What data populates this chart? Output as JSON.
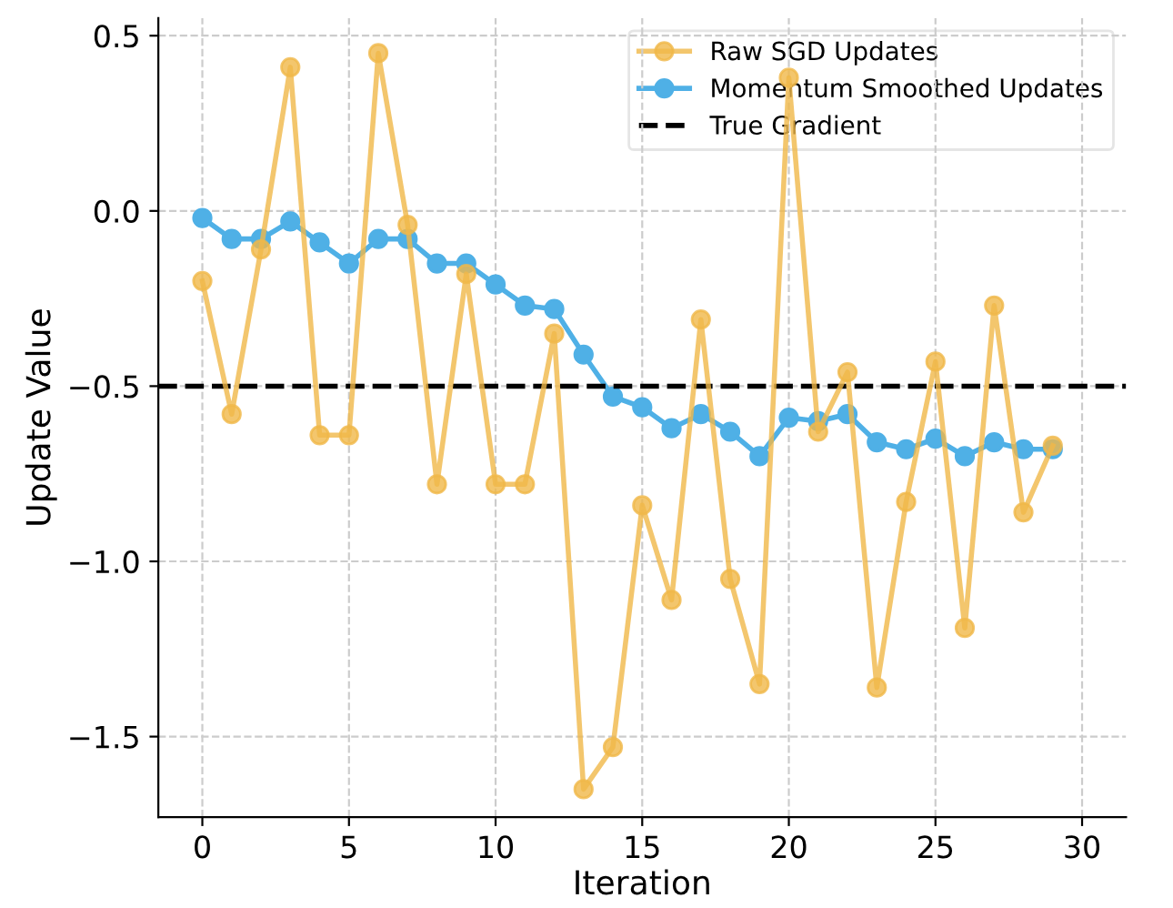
{
  "chart_data": {
    "type": "line",
    "xlabel": "Iteration",
    "ylabel": "Update Value",
    "x": [
      0,
      1,
      2,
      3,
      4,
      5,
      6,
      7,
      8,
      9,
      10,
      11,
      12,
      13,
      14,
      15,
      16,
      17,
      18,
      19,
      20,
      21,
      22,
      23,
      24,
      25,
      26,
      27,
      28,
      29
    ],
    "series": [
      {
        "name": "Raw SGD Updates",
        "color": "#f0b848",
        "values": [
          -0.2,
          -0.58,
          -0.11,
          0.41,
          -0.64,
          -0.64,
          0.45,
          -0.04,
          -0.78,
          -0.18,
          -0.78,
          -0.78,
          -0.35,
          -1.65,
          -1.53,
          -0.84,
          -1.11,
          -0.31,
          -1.05,
          -1.35,
          0.38,
          -0.63,
          -0.46,
          -1.36,
          -0.83,
          -0.43,
          -1.19,
          -0.27,
          -0.86,
          -0.67
        ]
      },
      {
        "name": "Momentum Smoothed Updates",
        "color": "#4fb0e6",
        "values": [
          -0.02,
          -0.08,
          -0.08,
          -0.03,
          -0.09,
          -0.15,
          -0.08,
          -0.08,
          -0.15,
          -0.15,
          -0.21,
          -0.27,
          -0.28,
          -0.41,
          -0.53,
          -0.56,
          -0.62,
          -0.58,
          -0.63,
          -0.7,
          -0.59,
          -0.6,
          -0.58,
          -0.66,
          -0.68,
          -0.65,
          -0.7,
          -0.66,
          -0.68,
          -0.68
        ]
      }
    ],
    "ref_lines": [
      {
        "axis": "y",
        "value": -0.5,
        "label": "True Gradient",
        "color": "#000000",
        "line_style": "dashed"
      }
    ],
    "xlim": [
      -1.5,
      31.5
    ],
    "ylim": [
      -1.73,
      0.55
    ],
    "xticks": [
      0,
      5,
      10,
      15,
      20,
      25,
      30
    ],
    "yticks": [
      {
        "value": 0.5,
        "label": "0.5"
      },
      {
        "value": 0.0,
        "label": "0.0"
      },
      {
        "value": -0.5,
        "label": "−0.5"
      },
      {
        "value": -1.0,
        "label": "−1.0"
      },
      {
        "value": -1.5,
        "label": "−1.5"
      }
    ],
    "grid": true,
    "legend": "top right",
    "marker": "circle",
    "line_style": "solid"
  }
}
